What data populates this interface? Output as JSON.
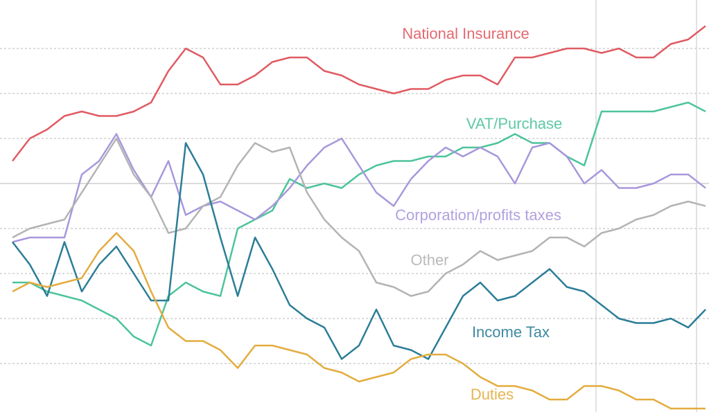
{
  "chart_data": {
    "type": "line",
    "x": [
      0,
      1,
      2,
      3,
      4,
      5,
      6,
      7,
      8,
      9,
      10,
      11,
      12,
      13,
      14,
      15,
      16,
      17,
      18,
      19,
      20,
      21,
      22,
      23,
      24,
      25,
      26,
      27,
      28,
      29,
      30,
      31,
      32,
      33,
      34,
      35,
      36,
      37,
      38,
      39,
      40
    ],
    "xlim": [
      0,
      40
    ],
    "ylim": [
      0,
      90
    ],
    "yticks": [
      10,
      20,
      30,
      40,
      50,
      60,
      70,
      80
    ],
    "grid": true,
    "series": [
      {
        "name": "National Insurance",
        "color": "#e05a62",
        "values": [
          55,
          60,
          62,
          65,
          66,
          65,
          65,
          66,
          68,
          75,
          80,
          78,
          72,
          72,
          74,
          77,
          78,
          78,
          75,
          74,
          72,
          71,
          70,
          71,
          71,
          73,
          74,
          74,
          72,
          78,
          78,
          79,
          80,
          80,
          79,
          80,
          78,
          78,
          81,
          82,
          85
        ]
      },
      {
        "name": "VAT/Purchase",
        "color": "#4cc49a",
        "values": [
          28,
          28,
          26,
          25,
          24,
          22,
          20,
          16,
          14,
          25,
          28,
          26,
          25,
          40,
          42,
          44,
          51,
          49,
          50,
          49,
          52,
          54,
          55,
          55,
          56,
          56,
          58,
          58,
          59,
          61,
          59,
          59,
          56,
          54,
          66,
          66,
          66,
          66,
          67,
          68,
          66
        ]
      },
      {
        "name": "Corporation/profits taxes",
        "color": "#a897dc",
        "values": [
          37,
          38,
          38,
          38,
          52,
          55,
          61,
          53,
          47,
          55,
          43,
          45,
          46,
          44,
          42,
          45,
          49,
          54,
          58,
          60,
          54,
          48,
          45,
          51,
          55,
          58,
          56,
          58,
          56,
          50,
          58,
          59,
          56,
          50,
          53,
          49,
          49,
          50,
          52,
          52,
          49
        ]
      },
      {
        "name": "Other",
        "color": "#b3b3b3",
        "values": [
          38,
          40,
          41,
          42,
          48,
          54,
          60,
          52,
          47,
          39,
          40,
          45,
          47,
          54,
          59,
          57,
          58,
          48,
          42,
          38,
          35,
          28,
          27,
          25,
          26,
          30,
          32,
          35,
          33,
          34,
          35,
          38,
          38,
          36,
          39,
          40,
          42,
          43,
          45,
          46,
          45
        ]
      },
      {
        "name": "Income Tax",
        "color": "#2b7d97",
        "values": [
          37,
          32,
          25,
          37,
          26,
          32,
          36,
          30,
          24,
          24,
          59,
          52,
          38,
          25,
          38,
          31,
          23,
          20,
          18,
          11,
          14,
          22,
          14,
          13,
          11,
          18,
          25,
          28,
          24,
          25,
          28,
          31,
          27,
          26,
          23,
          20,
          19,
          19,
          20,
          18,
          22
        ]
      },
      {
        "name": "Duties",
        "color": "#e3ac3e",
        "values": [
          26,
          28,
          27,
          28,
          29,
          35,
          39,
          35,
          26,
          18,
          15,
          15,
          13,
          9,
          14,
          14,
          13,
          12,
          9,
          8,
          6,
          7,
          8,
          11,
          12,
          12,
          10,
          7,
          5,
          5,
          4,
          2,
          2,
          5,
          5,
          4,
          2,
          2,
          0,
          0,
          0
        ]
      }
    ]
  }
}
